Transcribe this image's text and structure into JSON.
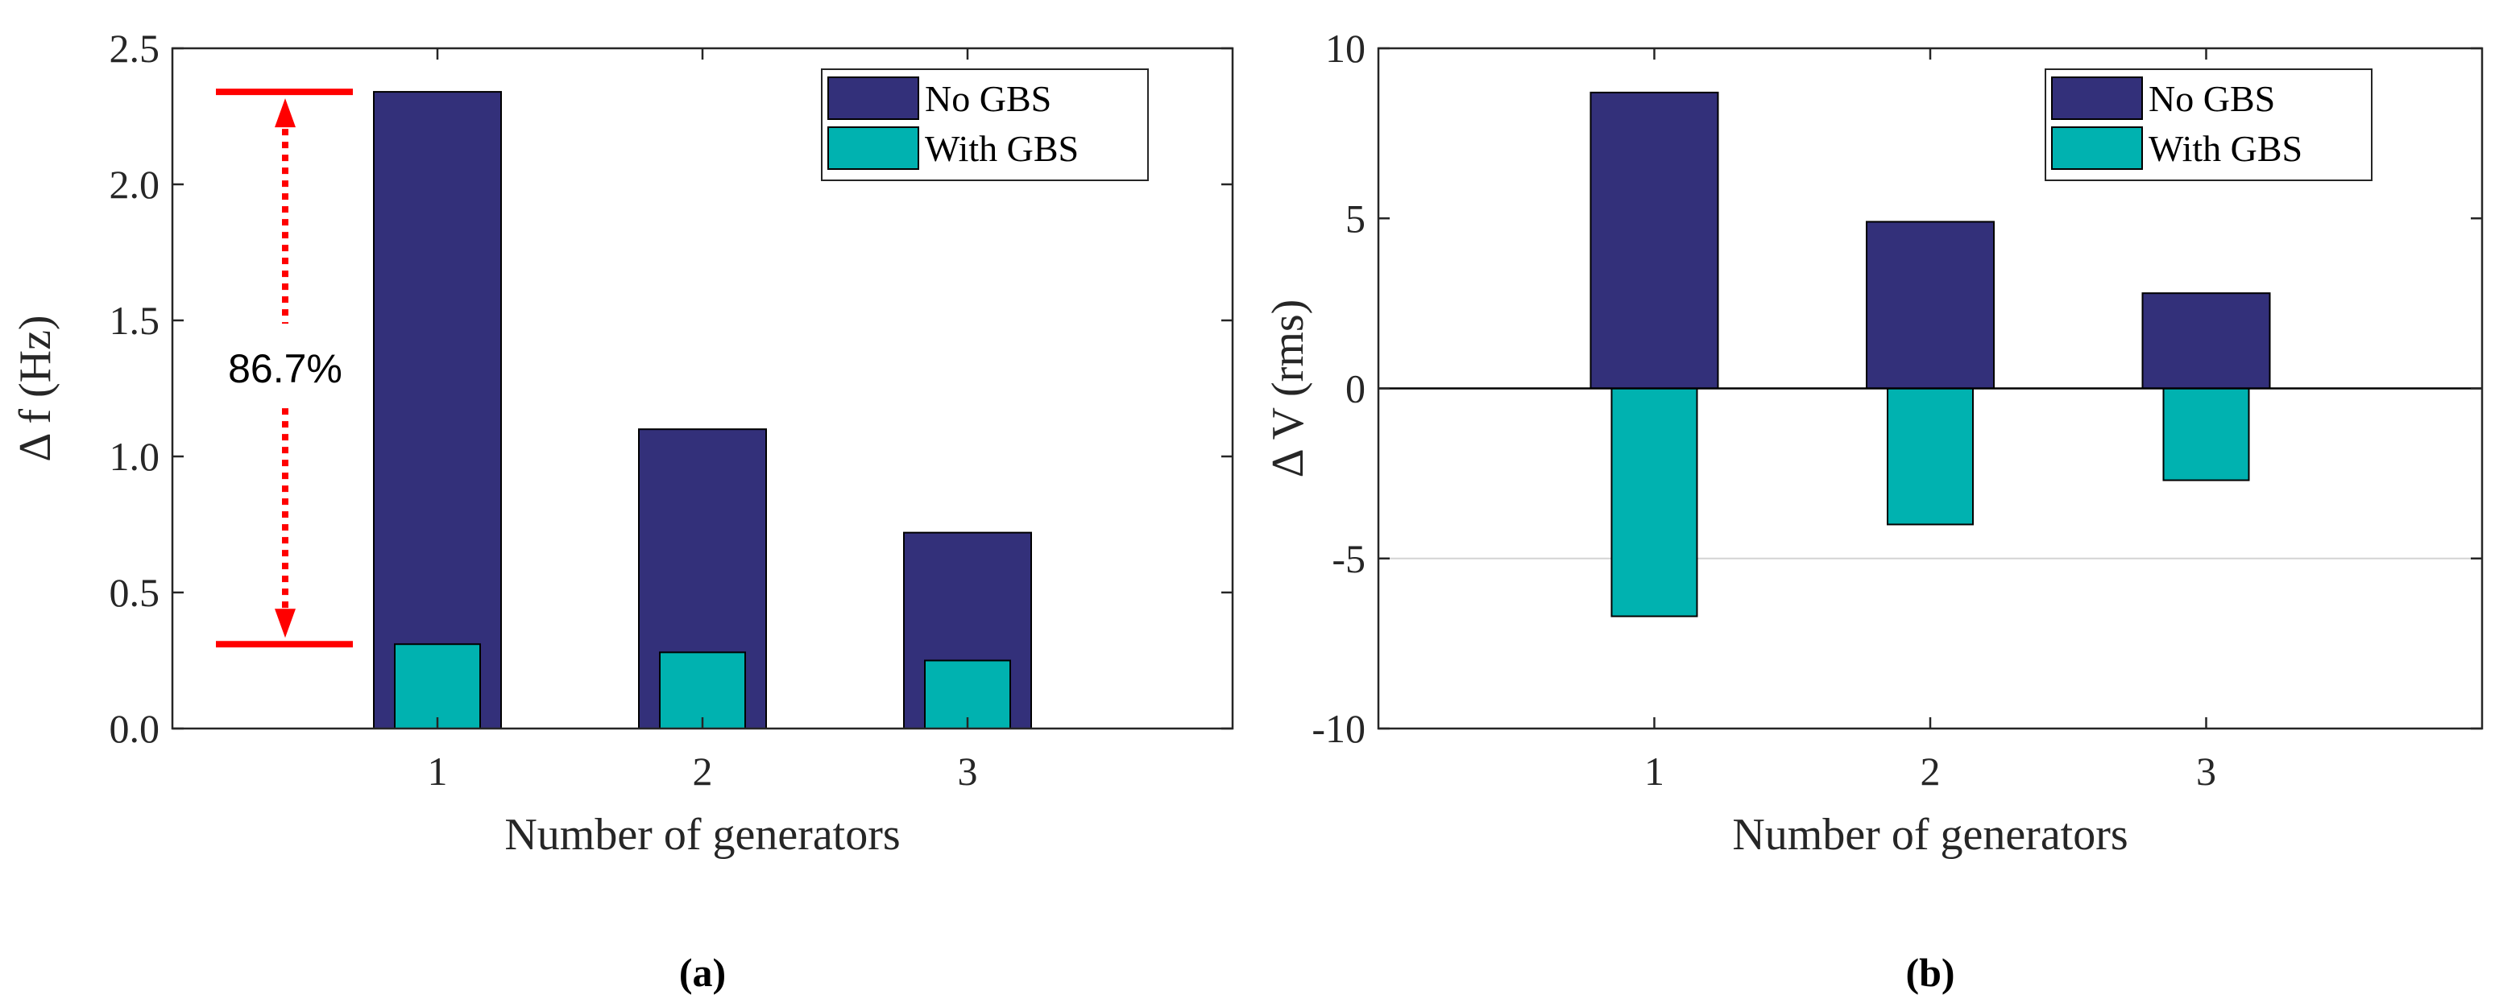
{
  "colors": {
    "no_gbs": "#33307A",
    "with_gbs": "#00B2B0",
    "annotation": "#FF0000",
    "axis": "#262626"
  },
  "chart_data": [
    {
      "type": "bar",
      "panel_label": "(a)",
      "title": "",
      "xlabel": "Number of generators",
      "ylabel": "Δ f (Hz)",
      "categories": [
        "1",
        "2",
        "3"
      ],
      "xlim": [
        0,
        4
      ],
      "ylim": [
        0,
        2.5
      ],
      "yticks": [
        0.0,
        0.5,
        1.0,
        1.5,
        2.0,
        2.5
      ],
      "ytick_labels": [
        "0.0",
        "0.5",
        "1.0",
        "1.5",
        "2.0",
        "2.5"
      ],
      "legend": {
        "position": "top-right",
        "entries": [
          "No GBS",
          "With GBS"
        ]
      },
      "series": [
        {
          "name": "No GBS",
          "values": [
            2.34,
            1.1,
            0.72
          ]
        },
        {
          "name": "With GBS",
          "values": [
            0.31,
            0.28,
            0.25
          ]
        }
      ],
      "annotation": {
        "text": "86.7%",
        "from": 2.34,
        "to": 0.31
      }
    },
    {
      "type": "bar",
      "panel_label": "(b)",
      "title": "",
      "xlabel": "Number of generators",
      "ylabel": "Δ V (rms)",
      "categories": [
        "1",
        "2",
        "3"
      ],
      "xlim": [
        0,
        4
      ],
      "ylim": [
        -10,
        10
      ],
      "yticks": [
        -10,
        -5,
        0,
        5,
        10
      ],
      "ytick_labels": [
        "-10",
        "-5",
        "0",
        "5",
        "10"
      ],
      "legend": {
        "position": "top-right",
        "entries": [
          "No GBS",
          "With GBS"
        ]
      },
      "series": [
        {
          "name": "No GBS",
          "values": [
            8.7,
            4.9,
            2.8
          ]
        },
        {
          "name": "With GBS",
          "values": [
            -6.7,
            -4.0,
            -2.7
          ]
        }
      ]
    }
  ]
}
